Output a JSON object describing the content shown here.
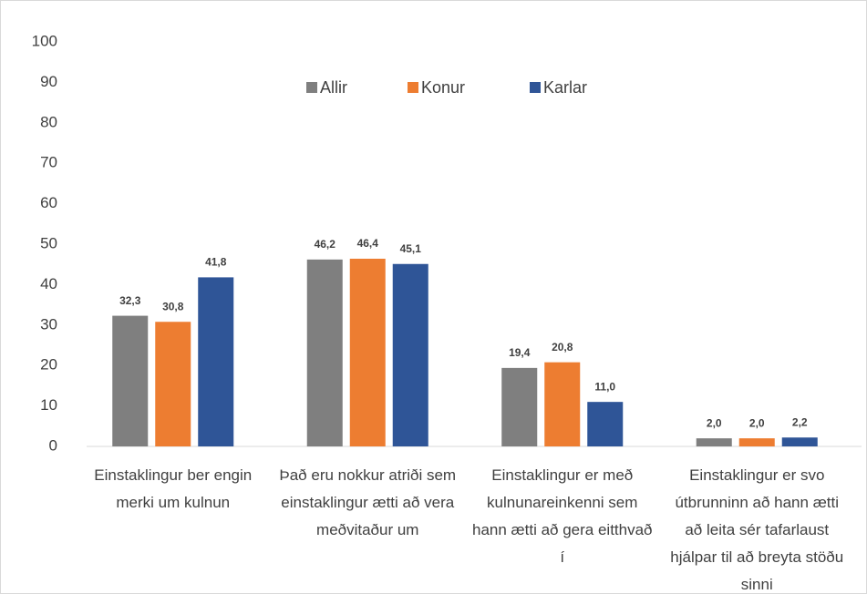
{
  "chart_data": {
    "type": "bar",
    "categories": [
      "Einstaklingur ber engin merki um kulnun",
      "Það eru nokkur atriði sem einstaklingur ætti að vera meðvitaður um",
      "Einstaklingur er með kulnunareinkenni sem hann ætti að gera eitthvað í",
      "Einstaklingur er svo útbrunninn að hann ætti að leita sér tafarlaust hjálpar til að breyta stöðu sinni"
    ],
    "series": [
      {
        "name": "Allir",
        "color": "#7f7f7f",
        "values": [
          32.3,
          46.2,
          19.4,
          2.0
        ],
        "value_labels": [
          "32,3",
          "46,2",
          "19,4",
          "2,0"
        ]
      },
      {
        "name": "Konur",
        "color": "#ed7d31",
        "values": [
          30.8,
          46.4,
          20.8,
          2.0
        ],
        "value_labels": [
          "30,8",
          "46,4",
          "20,8",
          "2,0"
        ]
      },
      {
        "name": "Karlar",
        "color": "#2f5597",
        "values": [
          41.8,
          45.1,
          11.0,
          2.2
        ],
        "value_labels": [
          "41,8",
          "45,1",
          "11,0",
          "2,2"
        ]
      }
    ],
    "ylim": [
      0,
      100
    ],
    "yticks": [
      0,
      10,
      20,
      30,
      40,
      50,
      60,
      70,
      80,
      90,
      100
    ],
    "grid": false,
    "legend": "top"
  }
}
